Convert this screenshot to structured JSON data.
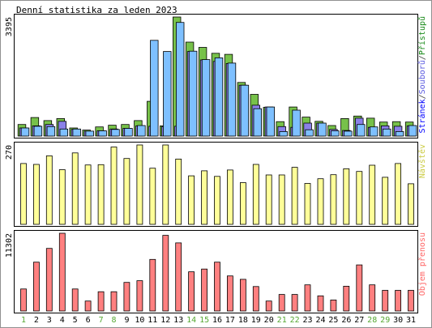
{
  "chart_data": {
    "type": "bar",
    "title": "Denní statistika za leden 2023",
    "categories": [
      "1",
      "2",
      "3",
      "4",
      "5",
      "6",
      "7",
      "8",
      "9",
      "10",
      "11",
      "12",
      "13",
      "14",
      "15",
      "16",
      "17",
      "18",
      "19",
      "20",
      "21",
      "22",
      "23",
      "24",
      "25",
      "26",
      "27",
      "28",
      "29",
      "30",
      "31"
    ],
    "weekend_days": [
      "1",
      "7",
      "8",
      "14",
      "15",
      "21",
      "22",
      "28",
      "29"
    ],
    "panels": [
      {
        "id": "hits",
        "ymax": 3395,
        "ymax_label": "3395",
        "legend": [
          {
            "text": "Stránek",
            "color": "#0000ff"
          },
          {
            "text": "/",
            "color": "#404040"
          },
          {
            "text": "Souborů",
            "color": "#5a5ae0"
          },
          {
            "text": "/",
            "color": "#404040"
          },
          {
            "text": "Přístupů",
            "color": "#1a8a1a"
          }
        ],
        "series": [
          {
            "name": "Přístupů",
            "color": "#77c14a",
            "values": [
              330,
              530,
              440,
              500,
              230,
              170,
              260,
              310,
              330,
              440,
              990,
              290,
              3395,
              2680,
              2530,
              2360,
              2330,
              1530,
              1190,
              820,
              410,
              830,
              540,
              420,
              300,
              500,
              570,
              510,
              400,
              410,
              400
            ]
          },
          {
            "name": "Souborů",
            "color": "#8a80e8",
            "values": [
              230,
              290,
              330,
              420,
              190,
              140,
              150,
              200,
              220,
              290,
              280,
              270,
              280,
              2410,
              2170,
              2130,
              2070,
              1450,
              880,
              830,
              270,
              250,
              370,
              370,
              190,
              160,
              510,
              250,
              290,
              280,
              290
            ]
          },
          {
            "name": "Stránek",
            "color": "#7ec0ff",
            "values": [
              230,
              280,
              270,
              200,
              200,
              140,
              150,
              190,
              220,
              300,
              2730,
              2410,
              3240,
              2420,
              2180,
              2230,
              2080,
              1450,
              780,
              830,
              130,
              740,
              180,
              370,
              150,
              140,
              330,
              260,
              200,
              130,
              300
            ]
          }
        ]
      },
      {
        "id": "visits",
        "ymax": 270,
        "ymax_label": "270",
        "legend": [
          {
            "text": "Návštěv",
            "color": "#cccc44"
          }
        ],
        "series": [
          {
            "name": "Návštěv",
            "color": "#ffff99",
            "values": [
              207,
              204,
              233,
              186,
              243,
              202,
              203,
              263,
              224,
              270,
              191,
              270,
              222,
              165,
              182,
              163,
              185,
              142,
              204,
              168,
              168,
              194,
              139,
              155,
              169,
              189,
              180,
              201,
              160,
              207,
              138
            ]
          }
        ]
      },
      {
        "id": "volume",
        "ymax": 11302,
        "ymax_label": "11302",
        "legend": [
          {
            "text": "Objem přenosu",
            "color": "#ff6666"
          }
        ],
        "series": [
          {
            "name": "Objem přenosu",
            "color": "#ff8080",
            "values": [
              3200,
              7100,
              9100,
              11302,
              3200,
              1450,
              2800,
              2800,
              4150,
              4400,
              7500,
              11000,
              9900,
              5700,
              6100,
              7100,
              5100,
              4600,
              3560,
              1450,
              2400,
              2400,
              3800,
              2200,
              1600,
              3600,
              6700,
              3800,
              3000,
              3000,
              3000
            ]
          }
        ]
      }
    ]
  }
}
